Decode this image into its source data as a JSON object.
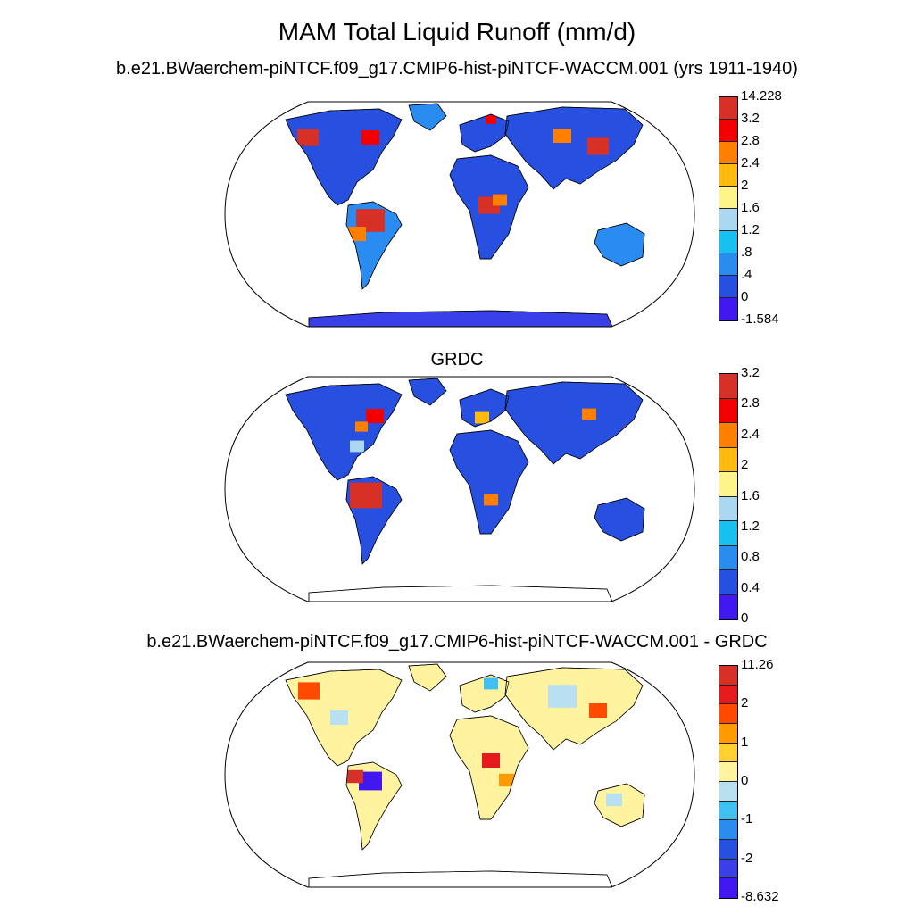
{
  "title": "MAM Total Liquid Runoff (mm/d)",
  "panels": [
    {
      "title": "b.e21.BWaerchem-piNTCF.f09_g17.CMIP6-hist-piNTCF-WACCM.001 (yrs 1911-1940)",
      "colorbar": {
        "colors": [
          "#d73027",
          "#f20000",
          "#ff7f00",
          "#ffbb10",
          "#fff38a",
          "#a9d8f0",
          "#18c0f0",
          "#2a8cf0",
          "#2850e0",
          "#4218f0"
        ],
        "labels": [
          "14.228",
          "3.2",
          "2.8",
          "2.4",
          "2",
          "1.6",
          "1.2",
          ".8",
          ".4",
          "0",
          "-1.584"
        ]
      }
    },
    {
      "title": "GRDC",
      "colorbar": {
        "colors": [
          "#d73027",
          "#f20000",
          "#ff7f00",
          "#ffbb10",
          "#fff38a",
          "#a9d8f0",
          "#18c0f0",
          "#2a8cf0",
          "#2850e0",
          "#4218f0"
        ],
        "labels": [
          "3.2",
          "2.8",
          "2.4",
          "2",
          "1.6",
          "1.2",
          "0.8",
          "0.4",
          "0"
        ]
      }
    },
    {
      "title": "b.e21.BWaerchem-piNTCF.f09_g17.CMIP6-hist-piNTCF-WACCM.001 - GRDC",
      "colorbar": {
        "colors": [
          "#d73027",
          "#e41a1c",
          "#ff4a00",
          "#ff9a00",
          "#ffd030",
          "#fff3a0",
          "#b8e0f0",
          "#40c0f0",
          "#2a8cf0",
          "#2850e0",
          "#3a40e8",
          "#4218f0"
        ],
        "labels": [
          "11.26",
          "2",
          "1",
          "0",
          "-1",
          "-2",
          "-8.632"
        ]
      }
    }
  ]
}
